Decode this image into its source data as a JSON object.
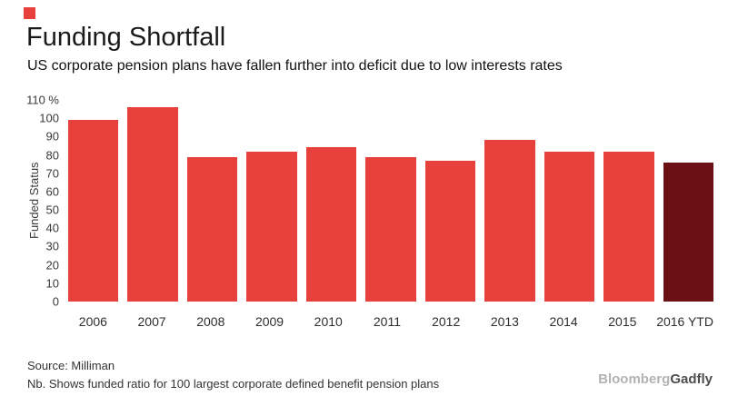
{
  "brand": {
    "mark_color": "#e8403a"
  },
  "header": {
    "title": "Funding Shortfall",
    "subtitle": "US corporate pension plans have fallen further into deficit due to low interests rates"
  },
  "chart_data": {
    "type": "bar",
    "categories": [
      "2006",
      "2007",
      "2008",
      "2009",
      "2010",
      "2011",
      "2012",
      "2013",
      "2014",
      "2015",
      "2016 YTD"
    ],
    "values": [
      99,
      106,
      79,
      82,
      84,
      79,
      77,
      88,
      82,
      82,
      76
    ],
    "title": "Funding Shortfall",
    "xlabel": "",
    "ylabel": "Funded Status",
    "ylim": [
      0,
      110
    ],
    "yticks": [
      0,
      10,
      20,
      30,
      40,
      50,
      60,
      70,
      80,
      90,
      100,
      110
    ],
    "y_top_tick_label": "110 %",
    "bar_color": "#e8403a",
    "highlight_index": 10,
    "highlight_color": "#6b1116",
    "grid": false,
    "legend": false
  },
  "footer": {
    "source": "Source: Milliman",
    "note": "Nb. Shows funded ratio for 100 largest corporate defined benefit pension plans"
  },
  "logo": {
    "part1": "Bloomberg",
    "part2": "Gadfly"
  }
}
